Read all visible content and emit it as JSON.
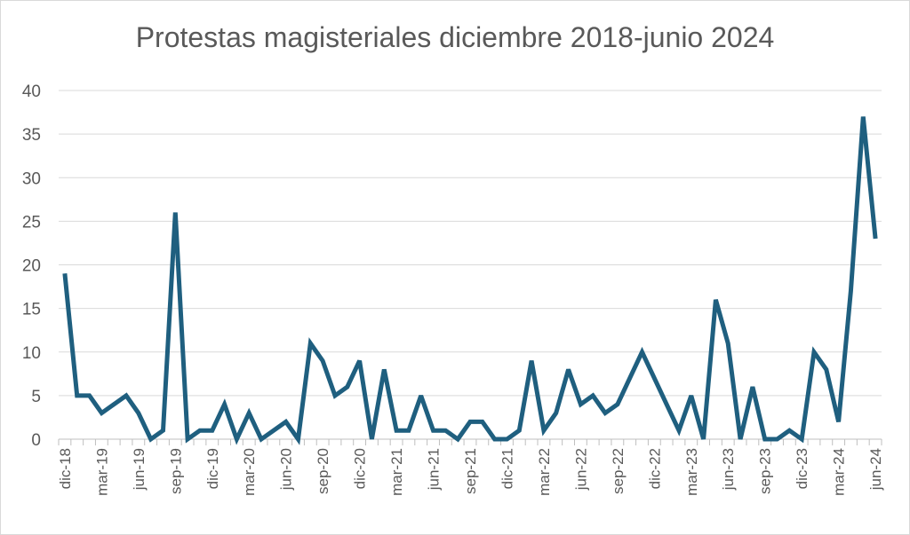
{
  "chart_data": {
    "type": "line",
    "title": "Protestas magisteriales diciembre 2018-junio 2024",
    "xlabel": "",
    "ylabel": "",
    "ylim": [
      0,
      40
    ],
    "y_ticks": [
      "0",
      "5",
      "10",
      "15",
      "20",
      "25",
      "30",
      "35",
      "40"
    ],
    "x_tick_labels": [
      "dic-18",
      "mar-19",
      "jun-19",
      "sep-19",
      "dic-19",
      "mar-20",
      "jun-20",
      "sep-20",
      "dic-20",
      "mar-21",
      "jun-21",
      "sep-21",
      "dic-21",
      "mar-22",
      "jun-22",
      "sep-22",
      "dic-22",
      "mar-23",
      "jun-23",
      "sep-23",
      "dic-23",
      "mar-24",
      "jun-24"
    ],
    "grid": true,
    "legend": false,
    "line_color": "#1f5f7f",
    "series": [
      {
        "values": [
          19,
          5,
          5,
          3,
          4,
          5,
          3,
          0,
          1,
          26,
          0,
          1,
          1,
          4,
          0,
          3,
          0,
          1,
          2,
          0,
          11,
          9,
          5,
          6,
          9,
          0,
          8,
          1,
          1,
          5,
          1,
          1,
          0,
          2,
          2,
          0,
          0,
          1,
          9,
          1,
          3,
          8,
          4,
          5,
          3,
          4,
          7,
          10,
          7,
          4,
          1,
          5,
          0,
          16,
          11,
          0,
          6,
          0,
          0,
          1,
          0,
          10,
          8,
          2,
          17,
          37,
          23
        ]
      }
    ]
  }
}
